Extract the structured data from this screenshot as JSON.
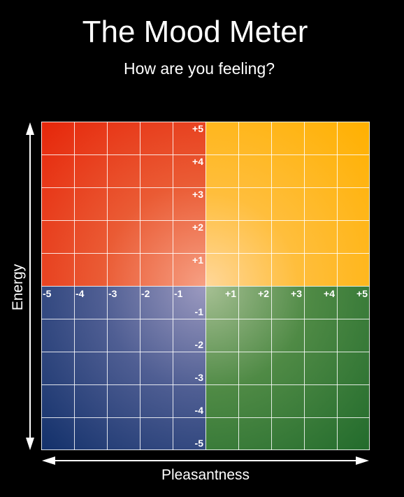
{
  "title": "The Mood Meter",
  "subtitle": "How are you feeling?",
  "axes": {
    "energy_label": "Energy",
    "pleasantness_label": "Pleasantness",
    "x_ticks": [
      "-5",
      "-4",
      "-3",
      "-2",
      "-1",
      "+1",
      "+2",
      "+3",
      "+4",
      "+5"
    ],
    "y_ticks_positive": [
      "+5",
      "+4",
      "+3",
      "+2",
      "+1"
    ],
    "y_ticks_negative": [
      "-1",
      "-2",
      "-3",
      "-4",
      "-5"
    ]
  },
  "quadrants": [
    {
      "id": "high-energy-unpleasant",
      "color": "#e6260a"
    },
    {
      "id": "high-energy-pleasant",
      "color": "#ffb000"
    },
    {
      "id": "low-energy-unpleasant",
      "color": "#12306a"
    },
    {
      "id": "low-energy-pleasant",
      "color": "#226b2c"
    }
  ],
  "grid": {
    "divisions": 10
  }
}
